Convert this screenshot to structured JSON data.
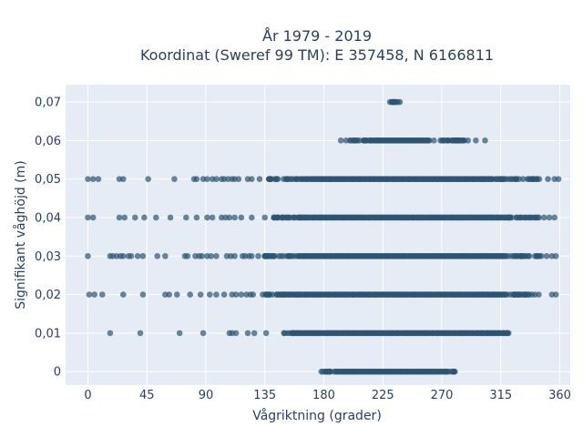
{
  "chart_data": {
    "type": "scatter",
    "title_line1": "År 1979 - 2019",
    "title_line2": "Koordinat (Sweref 99 TM): E 357458, N 6166811",
    "xlabel": "Vågriktning (grader)",
    "ylabel": "Signifikant våghöjd (m)",
    "xlim": [
      -17,
      368
    ],
    "ylim": [
      -0.0035,
      0.0745
    ],
    "x_ticks": [
      0,
      45,
      90,
      135,
      180,
      225,
      270,
      315,
      360
    ],
    "x_tick_labels": [
      "0",
      "45",
      "90",
      "135",
      "180",
      "225",
      "270",
      "315",
      "360"
    ],
    "y_ticks": [
      0,
      0.01,
      0.02,
      0.03,
      0.04,
      0.05,
      0.06,
      0.07
    ],
    "y_tick_labels": [
      "0",
      "0,01",
      "0,02",
      "0,03",
      "0,04",
      "0,05",
      "0,06",
      "0,07"
    ],
    "grid": true,
    "colors": {
      "plot_background": "#e5ecf6",
      "grid": "#ffffff",
      "marker": "#2e5470",
      "text": "#2a3f5f"
    },
    "series": [
      {
        "values": [
          {
            "y": 0,
            "dense": [
              [
                193,
                275
              ],
              [
                178,
                280
              ]
            ],
            "sparse": [
              181,
              185,
              188,
              276,
              279
            ]
          },
          {
            "y": 0.01,
            "dense": [
              [
                160,
                320
              ],
              [
                148,
                322
              ]
            ],
            "sparse": [
              17,
              40,
              70,
              88,
              108,
              110,
              113,
              122,
              127,
              136,
              150,
              300,
              305,
              317,
              320
            ]
          },
          {
            "y": 0.02,
            "dense": [
              [
                150,
                320
              ],
              [
                133,
                340
              ]
            ],
            "sparse": [
              1,
              5,
              11,
              27,
              42,
              59,
              62,
              68,
              78,
              86,
              93,
              98,
              104,
              110,
              113,
              117,
              121,
              124,
              126,
              138,
              141,
              144,
              330,
              336,
              341,
              344,
              354,
              357
            ]
          },
          {
            "y": 0.03,
            "dense": [
              [
                160,
                320
              ],
              [
                135,
                345
              ]
            ],
            "sparse": [
              0,
              17,
              19,
              22,
              25,
              27,
              31,
              33,
              38,
              42,
              53,
              59,
              74,
              76,
              82,
              85,
              87,
              91,
              94,
              98,
              106,
              109,
              112,
              118,
              120,
              123,
              125,
              130,
              135,
              138,
              346,
              350,
              354,
              357
            ]
          },
          {
            "y": 0.04,
            "dense": [
              [
                160,
                320
              ],
              [
                140,
                345
              ]
            ],
            "sparse": [
              0,
              4,
              24,
              28,
              36,
              43,
              52,
              63,
              75,
              83,
              91,
              95,
              102,
              105,
              108,
              112,
              117,
              125,
              135,
              145,
              162,
              348,
              352,
              356
            ]
          },
          {
            "y": 0.05,
            "dense": [
              [
                170,
                310
              ],
              [
                138,
                345
              ]
            ],
            "sparse": [
              0,
              4,
              8,
              24,
              27,
              46,
              66,
              81,
              83,
              88,
              91,
              95,
              98,
              102,
              104,
              107,
              110,
              112,
              115,
              122,
              125,
              131,
              138,
              351,
              356,
              359
            ]
          },
          {
            "y": 0.06,
            "dense": [
              [
                215,
                260
              ],
              [
                200,
                290
              ]
            ],
            "sparse": [
              193,
              197,
              205,
              278,
              290,
              296,
              303
            ]
          },
          {
            "y": 0.07,
            "dense": [
              [
                232,
                236
              ],
              [
                230,
                238
              ]
            ],
            "sparse": []
          }
        ]
      }
    ]
  }
}
